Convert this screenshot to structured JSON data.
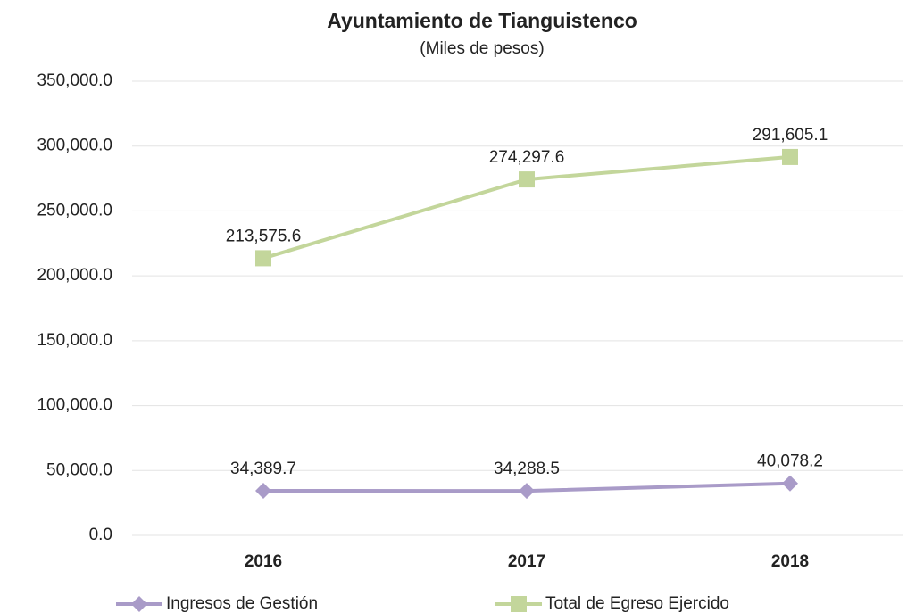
{
  "chart_data": {
    "type": "line",
    "title": "Ayuntamiento  de  Tianguistenco",
    "subtitle": "(Miles de pesos)",
    "categories": [
      "2016",
      "2017",
      "2018"
    ],
    "series": [
      {
        "name": "Ingresos de Gestión",
        "color": "#a99bc8",
        "marker": "diamond",
        "values": [
          34389.7,
          34288.5,
          40078.2
        ],
        "value_labels": [
          "34,389.7",
          "34,288.5",
          "40,078.2"
        ]
      },
      {
        "name": "Total de Egreso Ejercido",
        "color": "#c3d69b",
        "marker": "square",
        "values": [
          213575.6,
          274297.6,
          291605.1
        ],
        "value_labels": [
          "213,575.6",
          "274,297.6",
          "291,605.1"
        ]
      }
    ],
    "ylim": [
      0,
      350000
    ],
    "yticks": [
      {
        "value": 0,
        "label": "0.0"
      },
      {
        "value": 50000,
        "label": "50,000.0"
      },
      {
        "value": 100000,
        "label": "100,000.0"
      },
      {
        "value": 150000,
        "label": "150,000.0"
      },
      {
        "value": 200000,
        "label": "200,000.0"
      },
      {
        "value": 250000,
        "label": "250,000.0"
      },
      {
        "value": 300000,
        "label": "300,000.0"
      },
      {
        "value": 350000,
        "label": "350,000.0"
      }
    ],
    "grid": true,
    "legend": "bottom"
  }
}
